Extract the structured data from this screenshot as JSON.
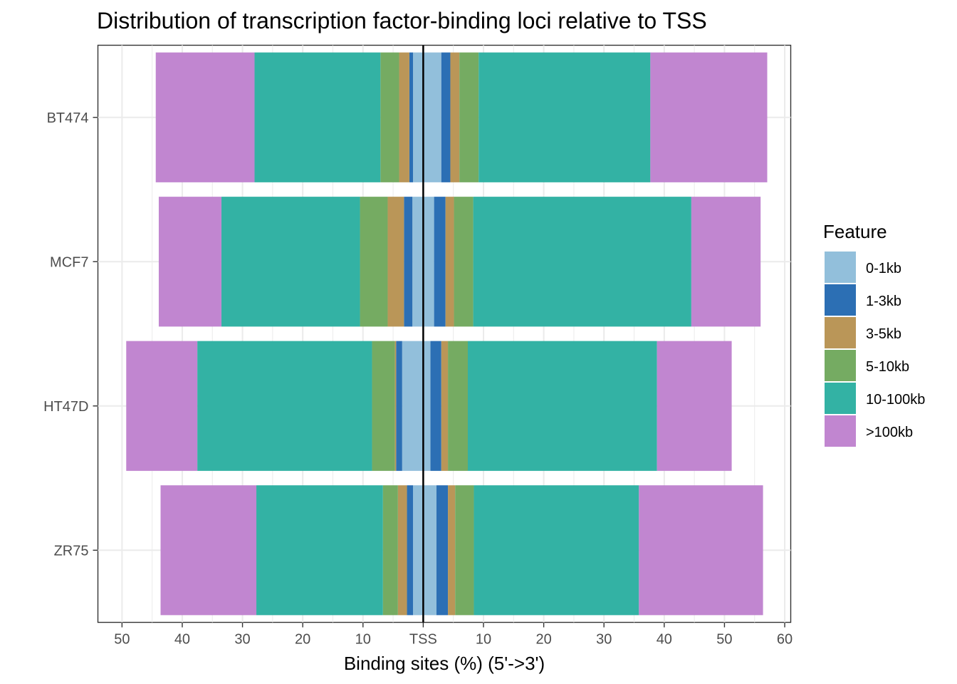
{
  "chart_data": {
    "type": "bar",
    "orientation": "horizontal-diverging",
    "title": "Distribution of transcription factor-binding loci relative to TSS",
    "xlabel": "Binding sites (%) (5'->3')",
    "ylabel": "",
    "x_ticks": [
      {
        "value": -50,
        "label": "50"
      },
      {
        "value": -40,
        "label": "40"
      },
      {
        "value": -30,
        "label": "30"
      },
      {
        "value": -20,
        "label": "20"
      },
      {
        "value": -10,
        "label": "10"
      },
      {
        "value": 0,
        "label": "TSS"
      },
      {
        "value": 10,
        "label": "10"
      },
      {
        "value": 20,
        "label": "20"
      },
      {
        "value": 30,
        "label": "30"
      },
      {
        "value": 40,
        "label": "40"
      },
      {
        "value": 50,
        "label": "50"
      },
      {
        "value": 60,
        "label": "60"
      }
    ],
    "xlim": [
      -54,
      61
    ],
    "categories": [
      "BT474",
      "MCF7",
      "HT47D",
      "ZR75"
    ],
    "legend": {
      "title": "Feature",
      "position": "right",
      "items": [
        {
          "label": "0-1kb",
          "color": "#92BFDB"
        },
        {
          "label": "1-3kb",
          "color": "#2C6FB4"
        },
        {
          "label": "3-5kb",
          "color": "#BA9658"
        },
        {
          "label": "5-10kb",
          "color": "#75AB62"
        },
        {
          "label": "10-100kb",
          "color": "#33B2A4"
        },
        {
          "label": ">100kb",
          "color": "#C186D0"
        }
      ]
    },
    "series": [
      {
        "name": "0-1kb",
        "upstream": [
          1.7,
          1.8,
          3.5,
          1.7
        ],
        "downstream": [
          3.0,
          1.8,
          1.2,
          2.2
        ]
      },
      {
        "name": "1-3kb",
        "upstream": [
          0.6,
          1.4,
          1.0,
          1.0
        ],
        "downstream": [
          1.5,
          1.9,
          1.8,
          1.9
        ]
      },
      {
        "name": "3-5kb",
        "upstream": [
          1.7,
          2.7,
          0.2,
          1.5
        ],
        "downstream": [
          1.5,
          1.4,
          1.1,
          1.2
        ]
      },
      {
        "name": "5-10kb",
        "upstream": [
          3.1,
          4.6,
          3.8,
          2.5
        ],
        "downstream": [
          3.2,
          3.2,
          3.3,
          3.1
        ]
      },
      {
        "name": "10-100kb",
        "upstream": [
          20.9,
          23.0,
          29.0,
          21.0
        ],
        "downstream": [
          28.5,
          36.2,
          31.4,
          27.4
        ]
      },
      {
        "name": ">100kb",
        "upstream": [
          16.4,
          10.4,
          11.8,
          15.9
        ],
        "downstream": [
          19.4,
          11.5,
          12.4,
          20.6
        ]
      }
    ],
    "grid": true,
    "reference_line": {
      "value": 0,
      "label": "TSS"
    }
  }
}
